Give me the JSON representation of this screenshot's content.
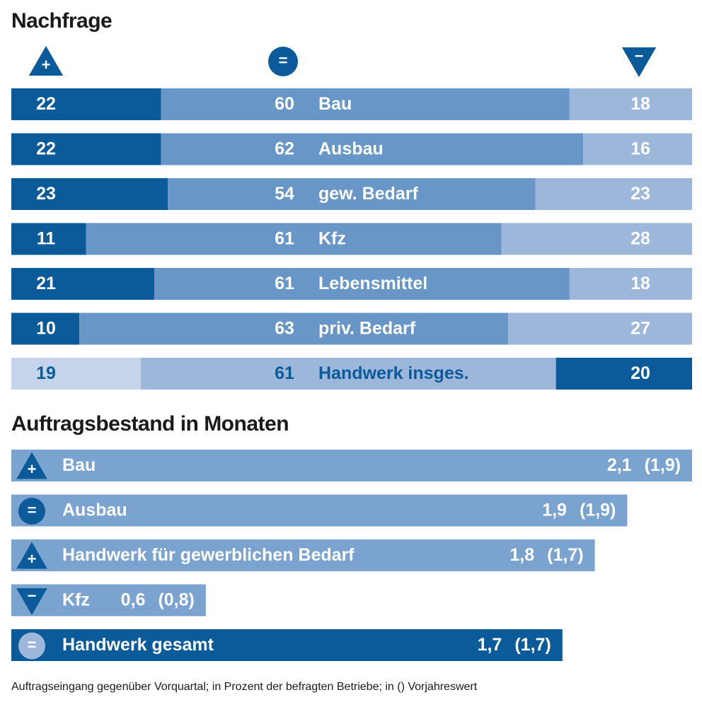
{
  "chart_data": [
    {
      "type": "stacked-bar",
      "title": "Nachfrage",
      "categories": [
        "Bau",
        "Ausbau",
        "gew. Bedarf",
        "Kfz",
        "Lebensmittel",
        "priv. Bedarf",
        "Handwerk insges."
      ],
      "series": [
        {
          "name": "+",
          "shape": "up",
          "color": "#0b5a9a",
          "colors": [
            "#0b5a9a",
            "#0b5a9a",
            "#0b5a9a",
            "#0b5a9a",
            "#0b5a9a",
            "#0b5a9a",
            "#c5d4ea"
          ],
          "text_colors": [
            "#ffffff",
            "#ffffff",
            "#ffffff",
            "#ffffff",
            "#ffffff",
            "#ffffff",
            "#0b5a9a"
          ],
          "values": [
            22,
            22,
            23,
            11,
            21,
            10,
            19
          ]
        },
        {
          "name": "=",
          "shape": "circle",
          "color": "#0b5a9a",
          "colors": [
            "#6796c7",
            "#6796c7",
            "#6796c7",
            "#6796c7",
            "#6796c7",
            "#6796c7",
            "#9db7da"
          ],
          "text_colors": [
            "#ffffff",
            "#ffffff",
            "#ffffff",
            "#ffffff",
            "#ffffff",
            "#ffffff",
            "#0b5a9a"
          ],
          "values": [
            60,
            62,
            54,
            61,
            61,
            63,
            61
          ]
        },
        {
          "name": "−",
          "shape": "down",
          "color": "#0b5a9a",
          "colors": [
            "#9db7da",
            "#9db7da",
            "#9db7da",
            "#9db7da",
            "#9db7da",
            "#9db7da",
            "#0b5a9a"
          ],
          "text_colors": [
            "#ffffff",
            "#ffffff",
            "#ffffff",
            "#ffffff",
            "#ffffff",
            "#ffffff",
            "#ffffff"
          ],
          "values": [
            18,
            16,
            23,
            28,
            18,
            27,
            20
          ]
        }
      ]
    },
    {
      "type": "bar",
      "title": "Auftragsbestand in Monaten",
      "categories": [
        "Bau",
        "Ausbau",
        "Handwerk für gewerblichen Bedarf",
        "Kfz",
        "Handwerk gesamt"
      ],
      "values": [
        2.1,
        1.9,
        1.8,
        0.6,
        1.7
      ],
      "value_labels": [
        "2,1",
        "1,9",
        "1,8",
        "0,6",
        "1,7"
      ],
      "prior_values": [
        1.9,
        1.9,
        1.7,
        0.8,
        1.7
      ],
      "prior_value_labels": [
        "(1,9)",
        "(1,9)",
        "(1,7)",
        "(0,8)",
        "(1,7)"
      ],
      "trend_symbols": [
        "+",
        "=",
        "+",
        "−",
        "="
      ],
      "trend_shapes": [
        "up",
        "circle",
        "up",
        "down",
        "circle"
      ],
      "colors": [
        "#7ba3cf",
        "#7ba3cf",
        "#7ba3cf",
        "#7ba3cf",
        "#0b5a9a"
      ],
      "icon_colors": [
        "#0b5a9a",
        "#0b5a9a",
        "#0b5a9a",
        "#0b5a9a",
        "#9db7da"
      ],
      "footnote": "Auftragseingang gegenüber Vorquartal; in Prozent der befragten Betriebe; in () Vorjahreswert"
    }
  ]
}
